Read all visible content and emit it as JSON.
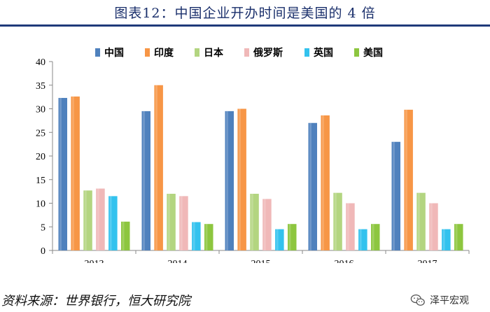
{
  "title": "图表12：中国企业开办时间是美国的 4 倍",
  "source": "资料来源：世界银行，恒大研究院",
  "watermark": {
    "text": "泽平宏观",
    "icon": "wechat-icon"
  },
  "chart_data": {
    "type": "bar",
    "categories": [
      "2013",
      "2014",
      "2015",
      "2016",
      "2017"
    ],
    "series": [
      {
        "name": "中国",
        "color": "#4f81bd",
        "values": [
          32.3,
          29.5,
          29.5,
          27,
          23
        ]
      },
      {
        "name": "印度",
        "color": "#f79646",
        "values": [
          32.6,
          35,
          30,
          28.6,
          29.8
        ]
      },
      {
        "name": "日本",
        "color": "#b3d580",
        "values": [
          12.7,
          12,
          12,
          12.2,
          12.2
        ]
      },
      {
        "name": "俄罗斯",
        "color": "#f0b8b8",
        "values": [
          13.1,
          11.5,
          10.9,
          10,
          10
        ]
      },
      {
        "name": "英国",
        "color": "#33c2ee",
        "values": [
          11.5,
          6,
          4.5,
          4.5,
          4.5
        ]
      },
      {
        "name": "美国",
        "color": "#8dc63f",
        "values": [
          6.1,
          5.6,
          5.6,
          5.6,
          5.6
        ]
      }
    ],
    "ylim": [
      0,
      40
    ],
    "yticks": [
      "0",
      "5",
      "10",
      "15",
      "20",
      "25",
      "30",
      "35",
      "40"
    ],
    "legend_position": "top",
    "grid": false
  }
}
